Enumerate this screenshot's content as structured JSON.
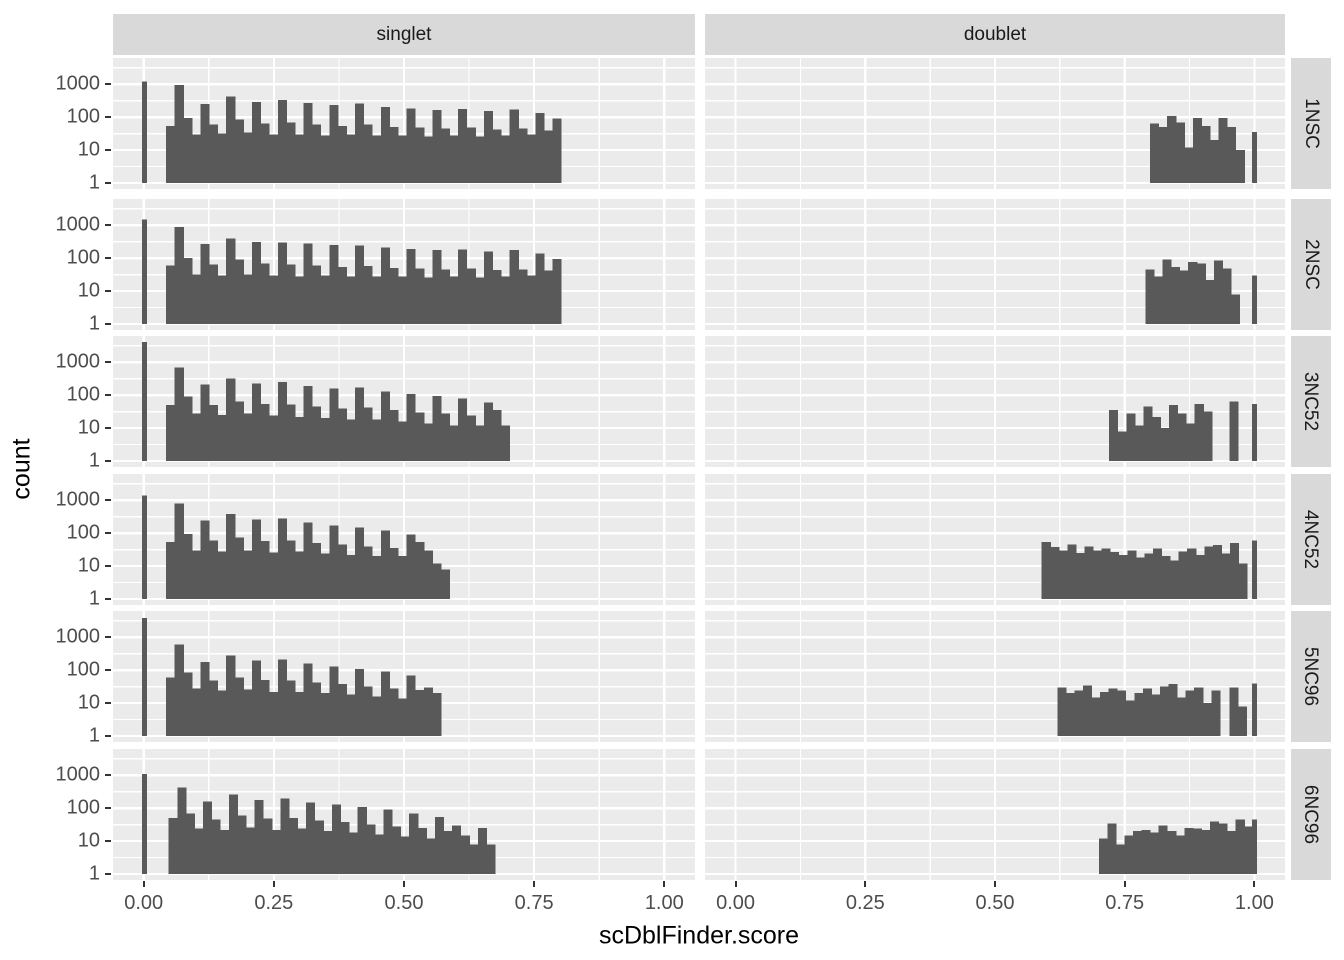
{
  "figure": {
    "x_axis_title": "scDblFinder.score",
    "y_axis_title": "count"
  },
  "chart_data": {
    "type": "histogram",
    "title": "",
    "xlabel": "scDblFinder.score",
    "ylabel": "count",
    "y_scale": "log10",
    "legend": "none",
    "grid": "on",
    "xlim": [
      -0.059,
      1.059
    ],
    "ylim_log10": [
      -0.181,
      3.799
    ],
    "x_ticks": {
      "values": [
        0,
        0.25,
        0.5,
        0.75,
        1.0
      ],
      "labels": [
        "0.00",
        "0.25",
        "0.50",
        "0.75",
        "1.00"
      ]
    },
    "y_ticks": {
      "values": [
        1,
        10,
        100,
        1000
      ],
      "labels": [
        "1",
        "10",
        "100",
        "1000"
      ]
    },
    "x_minor_gridlines": [
      0.125,
      0.375,
      0.625,
      0.875
    ],
    "y_minor_gridlines": [
      3.162,
      31.62,
      316.2,
      3162
    ],
    "col_facets": [
      "singlet",
      "doublet"
    ],
    "row_facets": [
      "1NSC",
      "2NSC",
      "3NC52",
      "4NC52",
      "5NC96",
      "6NC96"
    ],
    "binwidth": 0.0165,
    "bar_color": "#595959",
    "panel_bg": "#EBEBEB",
    "strip_bg": "#D9D9D9",
    "grid_color": "#FFFFFF",
    "panels": [
      {
        "row": "1NSC",
        "col": "singlet",
        "zero_bar": 1200,
        "x0": 0.043,
        "counts": [
          55,
          950,
          95,
          30,
          255,
          60,
          32,
          430,
          85,
          34,
          290,
          65,
          30,
          335,
          70,
          30,
          270,
          60,
          28,
          235,
          55,
          30,
          265,
          60,
          28,
          205,
          50,
          28,
          185,
          48,
          26,
          165,
          45,
          28,
          175,
          48,
          26,
          155,
          42,
          28,
          170,
          45,
          30,
          135,
          40,
          90
        ]
      },
      {
        "row": "1NSC",
        "col": "doublet",
        "x0": 0.799,
        "counts": [
          65,
          50,
          110,
          70,
          12,
          95,
          55,
          20,
          95,
          50,
          10
        ],
        "one_bar": 35
      },
      {
        "row": "2NSC",
        "col": "singlet",
        "zero_bar": 1500,
        "x0": 0.043,
        "counts": [
          60,
          900,
          100,
          32,
          270,
          65,
          30,
          400,
          90,
          32,
          310,
          70,
          30,
          300,
          65,
          28,
          280,
          60,
          30,
          250,
          55,
          28,
          240,
          58,
          28,
          215,
          50,
          28,
          190,
          48,
          26,
          175,
          46,
          28,
          185,
          48,
          26,
          160,
          44,
          28,
          175,
          46,
          30,
          140,
          42,
          95
        ]
      },
      {
        "row": "2NSC",
        "col": "doublet",
        "x0": 0.79,
        "counts": [
          45,
          28,
          90,
          55,
          42,
          78,
          68,
          22,
          85,
          48,
          8
        ],
        "one_bar": 30
      },
      {
        "row": "3NC52",
        "col": "singlet",
        "zero_bar": 4200,
        "x0": 0.043,
        "counts": [
          50,
          700,
          90,
          28,
          210,
          50,
          25,
          320,
          65,
          28,
          230,
          55,
          24,
          250,
          52,
          22,
          190,
          45,
          20,
          160,
          40,
          18,
          170,
          42,
          18,
          130,
          35,
          16,
          110,
          30,
          14,
          95,
          28,
          12,
          80,
          24,
          12,
          60,
          35,
          12
        ]
      },
      {
        "row": "3NC52",
        "col": "doublet",
        "x0": 0.72,
        "counts": [
          35,
          8,
          28,
          12,
          45,
          22,
          10,
          50,
          28,
          14,
          55,
          32
        ],
        "extra_bars": [
          [
            0.952,
            65
          ]
        ],
        "one_bar": 55
      },
      {
        "row": "4NC52",
        "col": "singlet",
        "zero_bar": 1400,
        "x0": 0.043,
        "counts": [
          55,
          800,
          95,
          30,
          240,
          60,
          28,
          380,
          75,
          30,
          260,
          58,
          26,
          280,
          60,
          28,
          210,
          50,
          24,
          170,
          45,
          22,
          150,
          40,
          20,
          120,
          35,
          20,
          90,
          55,
          30,
          12,
          8
        ]
      },
      {
        "row": "4NC52",
        "col": "doublet",
        "x0": 0.59,
        "counts": [
          55,
          38,
          30,
          45,
          25,
          40,
          30,
          34,
          27,
          22,
          30,
          18,
          24,
          34,
          20,
          15,
          28,
          34,
          22,
          40,
          44,
          24,
          50,
          12
        ],
        "one_bar": 60
      },
      {
        "row": "5NC96",
        "col": "singlet",
        "zero_bar": 3800,
        "x0": 0.043,
        "counts": [
          60,
          600,
          85,
          28,
          180,
          48,
          24,
          280,
          60,
          26,
          200,
          50,
          22,
          210,
          48,
          22,
          160,
          42,
          20,
          130,
          38,
          18,
          110,
          32,
          16,
          90,
          28,
          14,
          70,
          25,
          30,
          20
        ]
      },
      {
        "row": "5NC96",
        "col": "doublet",
        "x0": 0.62,
        "counts": [
          30,
          20,
          24,
          34,
          15,
          22,
          28,
          24,
          12,
          20,
          28,
          18,
          32,
          38,
          15,
          24,
          30,
          10,
          24
        ],
        "extra_bars": [
          [
            0.952,
            30
          ],
          [
            0.9685,
            8
          ]
        ],
        "one_bar": 40
      },
      {
        "row": "6NC96",
        "col": "singlet",
        "zero_bar": 1100,
        "x0": 0.048,
        "counts": [
          50,
          420,
          70,
          24,
          160,
          45,
          22,
          260,
          60,
          26,
          180,
          48,
          22,
          200,
          50,
          24,
          150,
          42,
          20,
          130,
          38,
          18,
          110,
          32,
          16,
          90,
          28,
          14,
          70,
          25,
          12,
          55,
          20,
          30,
          15,
          8,
          25,
          8
        ]
      },
      {
        "row": "6NC96",
        "col": "doublet",
        "x0": 0.7,
        "counts": [
          12,
          34,
          8,
          15,
          20,
          22,
          18,
          30,
          20,
          15,
          25,
          24,
          22,
          40,
          34,
          20,
          45,
          28
        ],
        "one_bar": 45
      }
    ]
  }
}
